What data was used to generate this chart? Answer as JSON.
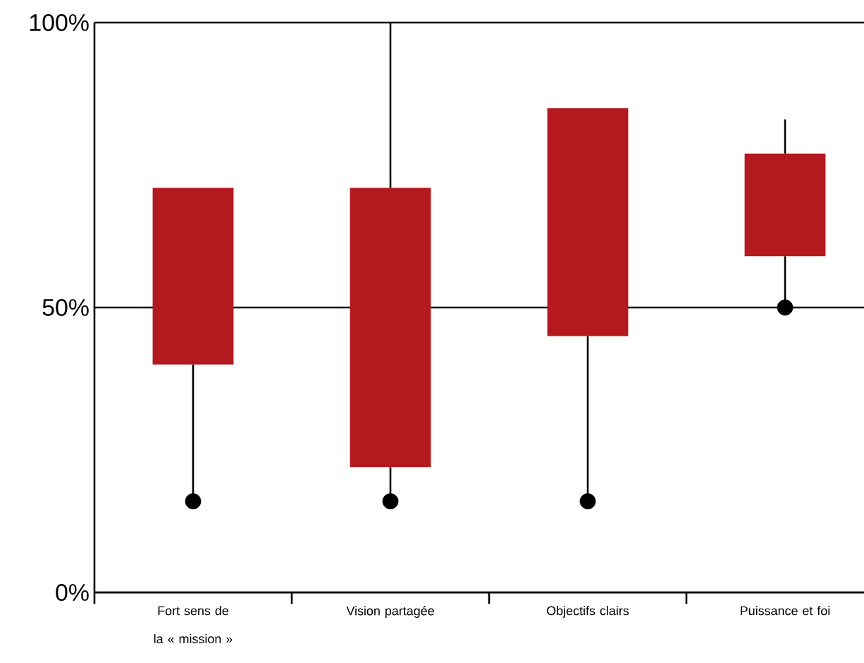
{
  "chart_data": {
    "type": "box",
    "color": "#b3191e",
    "categories": [
      "Fort sens de la « mission »",
      "Vision partagée",
      "Objectifs clairs",
      "Puissance et foi"
    ],
    "boxes": [
      {
        "low": 16,
        "q1": 40,
        "q3": 71,
        "high": 71
      },
      {
        "low": 16,
        "q1": 22,
        "q3": 71,
        "high": 100
      },
      {
        "low": 16,
        "q1": 45,
        "q3": 85,
        "high": 85
      },
      {
        "low": 50,
        "q1": 59,
        "q3": 77,
        "high": 83
      }
    ],
    "ylim": [
      0,
      100
    ],
    "yticks": [
      {
        "value": 0,
        "label": "0%"
      },
      {
        "value": 50,
        "label": "50%"
      },
      {
        "value": 100,
        "label": "100%"
      }
    ],
    "series": [
      {
        "type": "scatter",
        "x": [
          "Fort sens de la « mission »",
          "Vision partagée",
          "Objectifs clairs",
          "Puissance et foi"
        ],
        "values": [
          16,
          16,
          16,
          50
        ],
        "color": "#000000",
        "marker": "circle"
      }
    ],
    "grid": "y"
  }
}
